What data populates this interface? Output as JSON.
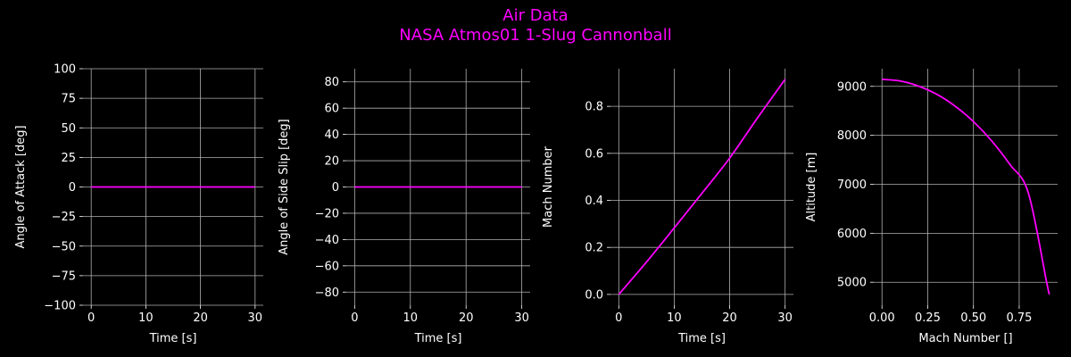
{
  "figure": {
    "title": "Air Data",
    "subtitle": "NASA Atmos01 1-Slug Cannonball",
    "title_color": "#ff00ff",
    "background": "#000000",
    "line_color": "#ff00ff",
    "grid_color": "#b0b0b0",
    "text_color": "#ffffff"
  },
  "chart_data": [
    {
      "type": "line",
      "xlabel": "Time [s]",
      "ylabel": "Angle of Attack [deg]",
      "xlim": [
        -1.5,
        31.5
      ],
      "ylim": [
        -100,
        100
      ],
      "xticks": [
        0,
        10,
        20,
        30
      ],
      "yticks": [
        -100,
        -75,
        -50,
        -25,
        0,
        25,
        50,
        75,
        100
      ],
      "grid": true,
      "series": [
        {
          "x": [
            0,
            5,
            10,
            15,
            20,
            25,
            30
          ],
          "y": [
            0,
            0,
            0,
            0,
            0,
            0,
            0
          ]
        }
      ]
    },
    {
      "type": "line",
      "xlabel": "Time [s]",
      "ylabel": "Angle of Side Slip [deg]",
      "xlim": [
        -1.5,
        31.5
      ],
      "ylim": [
        -90,
        90
      ],
      "xticks": [
        0,
        10,
        20,
        30
      ],
      "yticks": [
        -80,
        -60,
        -40,
        -20,
        0,
        20,
        40,
        60,
        80
      ],
      "grid": true,
      "series": [
        {
          "x": [
            0,
            5,
            10,
            15,
            20,
            25,
            30
          ],
          "y": [
            0,
            0,
            0,
            0,
            0,
            0,
            0
          ]
        }
      ]
    },
    {
      "type": "line",
      "xlabel": "Time [s]",
      "ylabel": "Mach Number",
      "xlim": [
        -1.5,
        31.5
      ],
      "ylim": [
        -0.046,
        0.96
      ],
      "xticks": [
        0,
        10,
        20,
        30
      ],
      "yticks": [
        0.0,
        0.2,
        0.4,
        0.6,
        0.8
      ],
      "grid": true,
      "series": [
        {
          "x": [
            0,
            5,
            10,
            15,
            20,
            25,
            30
          ],
          "y": [
            0.0,
            0.138,
            0.283,
            0.43,
            0.58,
            0.75,
            0.915
          ]
        }
      ]
    },
    {
      "type": "line",
      "xlabel": "Mach Number []",
      "ylabel": "Altitude [m]",
      "xlim": [
        -0.045,
        0.96
      ],
      "ylim": [
        4530,
        9360
      ],
      "xticks": [
        0.0,
        0.25,
        0.5,
        0.75
      ],
      "yticks": [
        5000,
        6000,
        7000,
        8000,
        9000
      ],
      "grid": true,
      "series": [
        {
          "x": [
            0.0,
            0.1,
            0.2,
            0.3,
            0.4,
            0.5,
            0.6,
            0.7,
            0.8,
            0.9,
            0.915
          ],
          "y": [
            9144,
            9110,
            9005,
            8837,
            8595,
            8280,
            7885,
            7400,
            6825,
            5000,
            4750
          ]
        }
      ]
    }
  ]
}
